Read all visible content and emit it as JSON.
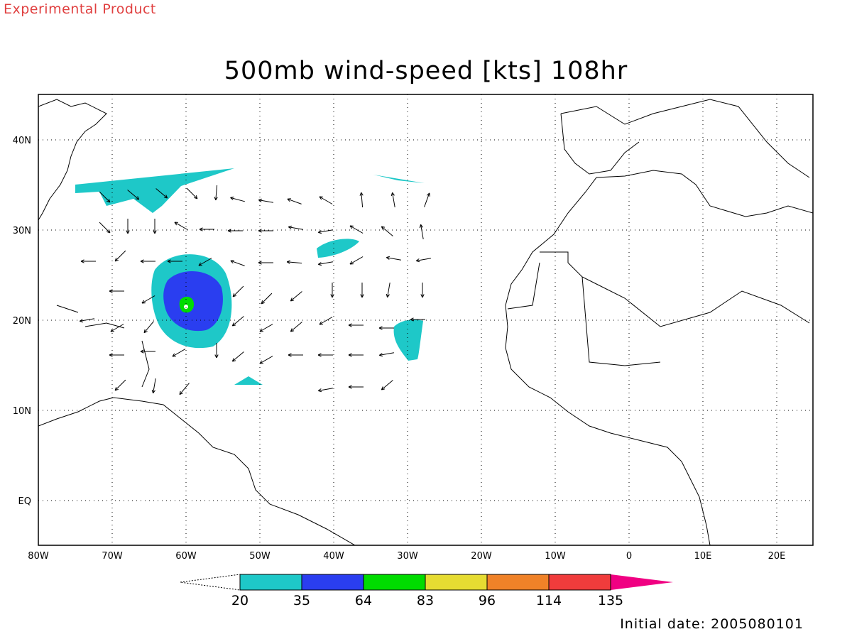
{
  "header": {
    "note": "Experimental Product"
  },
  "title": "500mb wind-speed [kts] 108hr",
  "footer": {
    "initial_date": "Initial date: 2005080101"
  },
  "map": {
    "lon_range": [
      -80,
      25
    ],
    "lat_range": [
      -5,
      45
    ],
    "lon_ticks": [
      {
        "lon": -80,
        "label": "80W"
      },
      {
        "lon": -70,
        "label": "70W"
      },
      {
        "lon": -60,
        "label": "60W"
      },
      {
        "lon": -50,
        "label": "50W"
      },
      {
        "lon": -40,
        "label": "40W"
      },
      {
        "lon": -30,
        "label": "30W"
      },
      {
        "lon": -20,
        "label": "20W"
      },
      {
        "lon": -10,
        "label": "10W"
      },
      {
        "lon": 0,
        "label": "0"
      },
      {
        "lon": 10,
        "label": "10E"
      },
      {
        "lon": 20,
        "label": "20E"
      }
    ],
    "lat_ticks": [
      {
        "lat": 40,
        "label": "40N"
      },
      {
        "lat": 30,
        "label": "30N"
      },
      {
        "lat": 20,
        "label": "20N"
      },
      {
        "lat": 10,
        "label": "10N"
      },
      {
        "lat": 0,
        "label": "EQ"
      }
    ],
    "gridlines": "dotted"
  },
  "colorbar": {
    "labels": [
      "20",
      "35",
      "64",
      "83",
      "96",
      "114",
      "135"
    ],
    "colors": [
      "#ffffff",
      "#1ec8c8",
      "#2a3ef0",
      "#00dc00",
      "#e6dc32",
      "#f08228",
      "#f03c3c",
      "#f00082"
    ]
  }
}
